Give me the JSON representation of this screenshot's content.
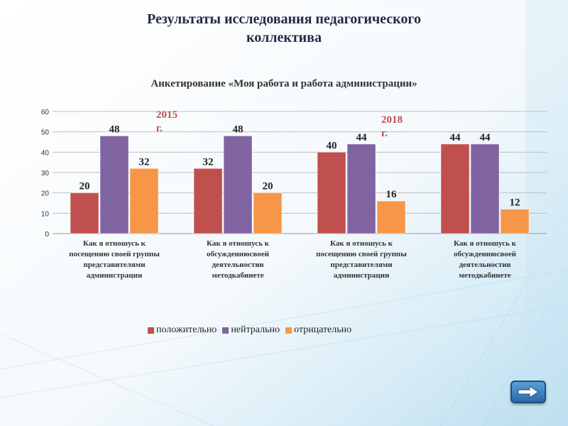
{
  "slide": {
    "title_line1": "Результаты исследования педагогического",
    "title_line2": "коллектива",
    "year_left": {
      "year": "2015",
      "suffix": "г."
    },
    "year_right": {
      "year": "2018",
      "suffix": "г."
    },
    "next_button_icon": "arrow-right-icon"
  },
  "chart_data": {
    "type": "bar",
    "title": "Анкетирование «Моя работа и работа администрации»",
    "categories": [
      [
        "Как я отношусь к",
        "посещению своей группы",
        "представителями",
        "администрации"
      ],
      [
        "Как я отношусь к",
        "обсужденнюсвоей",
        "деятельностив",
        "методкабинете"
      ],
      [
        "Как я отношусь к",
        "посещению своей группы",
        "представителями",
        "администрации"
      ],
      [
        "Как я отношусь к",
        "обсужденнюсвоей",
        "деятельностив",
        "методкабинете"
      ]
    ],
    "series": [
      {
        "name": "положительно",
        "color": "#c0504d",
        "values": [
          20,
          32,
          40,
          44
        ]
      },
      {
        "name": "нейтрально",
        "color": "#8064a2",
        "values": [
          48,
          48,
          44,
          44
        ]
      },
      {
        "name": "отрицательно",
        "color": "#f79646",
        "values": [
          32,
          20,
          16,
          12
        ]
      }
    ],
    "ylim": [
      0,
      60
    ],
    "yticks": [
      0,
      10,
      20,
      30,
      40,
      50,
      60
    ],
    "grid": true,
    "legend_position": "bottom"
  }
}
